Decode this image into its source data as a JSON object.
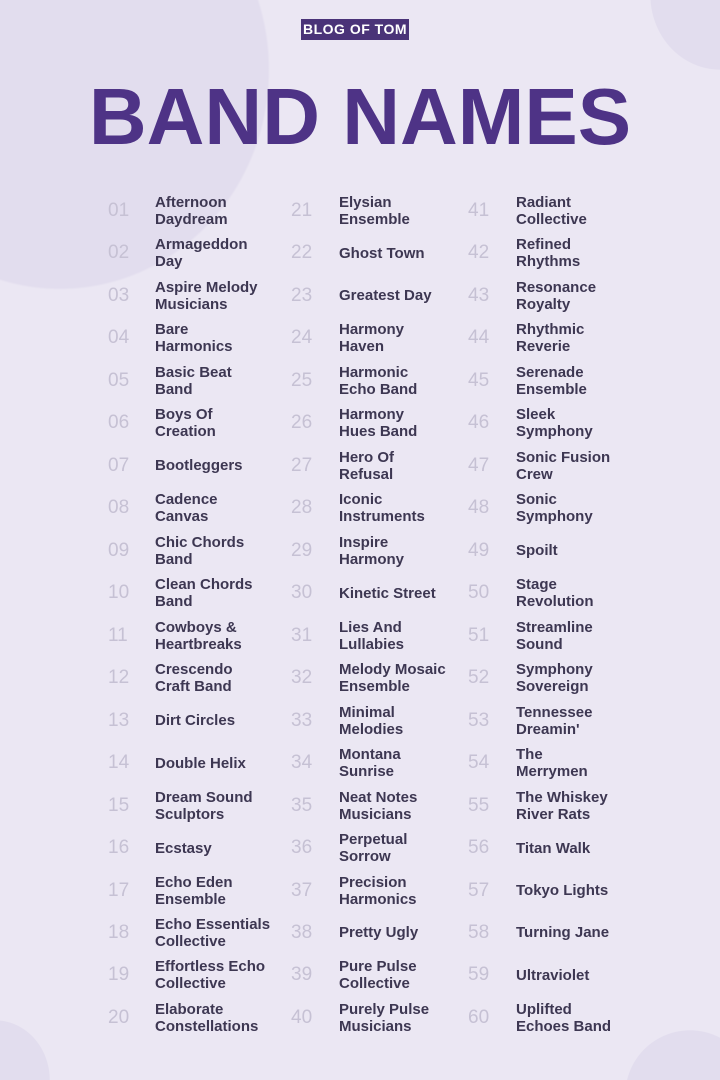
{
  "brand": "BLOG OF TOM",
  "title": "BAND NAMES",
  "colors": {
    "background": "#ebe7f3",
    "title": "#4e3386",
    "brand_bg": "#4a3378",
    "name_text": "#3d3752",
    "number_text": "#c6c1d4"
  },
  "columns": [
    [
      {
        "num": "01",
        "name": "Afternoon\nDaydream"
      },
      {
        "num": "02",
        "name": "Armageddon\nDay"
      },
      {
        "num": "03",
        "name": "Aspire Melody\nMusicians"
      },
      {
        "num": "04",
        "name": "Bare\nHarmonics"
      },
      {
        "num": "05",
        "name": "Basic Beat\nBand"
      },
      {
        "num": "06",
        "name": "Boys Of\nCreation"
      },
      {
        "num": "07",
        "name": "Bootleggers"
      },
      {
        "num": "08",
        "name": "Cadence\nCanvas"
      },
      {
        "num": "09",
        "name": "Chic Chords\nBand"
      },
      {
        "num": "10",
        "name": "Clean Chords\nBand"
      },
      {
        "num": "11",
        "name": "Cowboys &\nHeartbreaks"
      },
      {
        "num": "12",
        "name": "Crescendo\nCraft Band"
      },
      {
        "num": "13",
        "name": "Dirt Circles"
      },
      {
        "num": "14",
        "name": "Double Helix"
      },
      {
        "num": "15",
        "name": "Dream Sound\nSculptors"
      },
      {
        "num": "16",
        "name": "Ecstasy"
      },
      {
        "num": "17",
        "name": "Echo Eden\nEnsemble"
      },
      {
        "num": "18",
        "name": "Echo Essentials\nCollective"
      },
      {
        "num": "19",
        "name": "Effortless Echo\nCollective"
      },
      {
        "num": "20",
        "name": "Elaborate\nConstellations"
      }
    ],
    [
      {
        "num": "21",
        "name": "Elysian\nEnsemble"
      },
      {
        "num": "22",
        "name": "Ghost Town"
      },
      {
        "num": "23",
        "name": "Greatest Day"
      },
      {
        "num": "24",
        "name": "Harmony\nHaven"
      },
      {
        "num": "25",
        "name": "Harmonic\nEcho Band"
      },
      {
        "num": "26",
        "name": "Harmony\nHues Band"
      },
      {
        "num": "27",
        "name": "Hero Of\nRefusal"
      },
      {
        "num": "28",
        "name": "Iconic\nInstruments"
      },
      {
        "num": "29",
        "name": "Inspire\nHarmony"
      },
      {
        "num": "30",
        "name": "Kinetic Street"
      },
      {
        "num": "31",
        "name": "Lies And\nLullabies"
      },
      {
        "num": "32",
        "name": "Melody Mosaic\nEnsemble"
      },
      {
        "num": "33",
        "name": "Minimal\nMelodies"
      },
      {
        "num": "34",
        "name": "Montana\nSunrise"
      },
      {
        "num": "35",
        "name": "Neat Notes\nMusicians"
      },
      {
        "num": "36",
        "name": "Perpetual\nSorrow"
      },
      {
        "num": "37",
        "name": "Precision\nHarmonics"
      },
      {
        "num": "38",
        "name": "Pretty Ugly"
      },
      {
        "num": "39",
        "name": "Pure Pulse\nCollective"
      },
      {
        "num": "40",
        "name": "Purely Pulse\nMusicians"
      }
    ],
    [
      {
        "num": "41",
        "name": "Radiant\nCollective"
      },
      {
        "num": "42",
        "name": "Refined\nRhythms"
      },
      {
        "num": "43",
        "name": "Resonance\nRoyalty"
      },
      {
        "num": "44",
        "name": "Rhythmic\nReverie"
      },
      {
        "num": "45",
        "name": "Serenade\nEnsemble"
      },
      {
        "num": "46",
        "name": "Sleek\nSymphony"
      },
      {
        "num": "47",
        "name": "Sonic Fusion\nCrew"
      },
      {
        "num": "48",
        "name": "Sonic\nSymphony"
      },
      {
        "num": "49",
        "name": "Spoilt"
      },
      {
        "num": "50",
        "name": "Stage\nRevolution"
      },
      {
        "num": "51",
        "name": "Streamline\nSound"
      },
      {
        "num": "52",
        "name": "Symphony\nSovereign"
      },
      {
        "num": "53",
        "name": "Tennessee\nDreamin'"
      },
      {
        "num": "54",
        "name": "The\nMerrymen"
      },
      {
        "num": "55",
        "name": "The Whiskey\nRiver Rats"
      },
      {
        "num": "56",
        "name": "Titan Walk"
      },
      {
        "num": "57",
        "name": "Tokyo Lights"
      },
      {
        "num": "58",
        "name": "Turning Jane"
      },
      {
        "num": "59",
        "name": "Ultraviolet"
      },
      {
        "num": "60",
        "name": "Uplifted\nEchoes Band"
      }
    ]
  ]
}
